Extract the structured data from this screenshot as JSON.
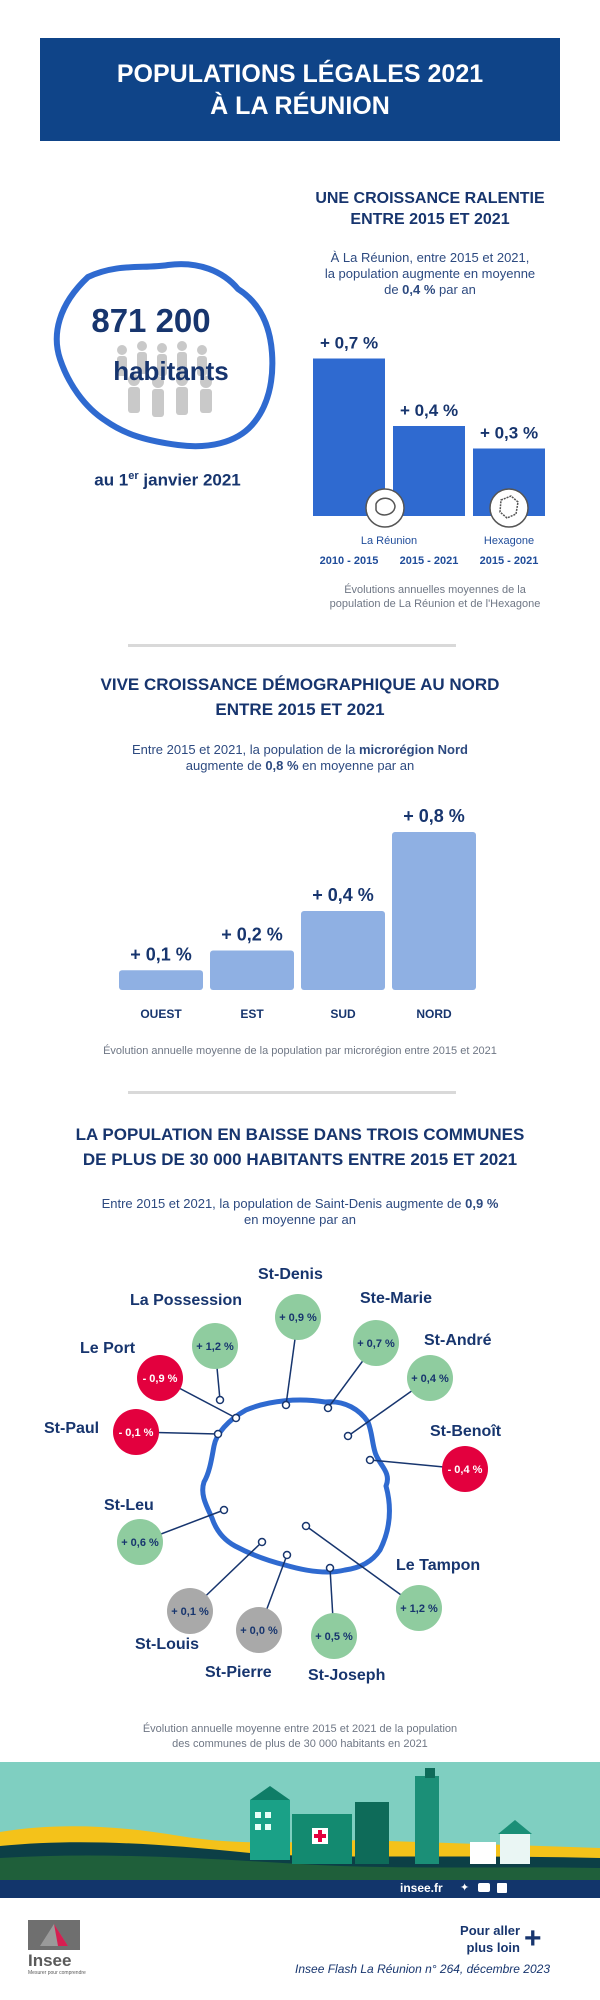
{
  "header": {
    "line1": "POPULATIONS LÉGALES 2021",
    "line2": "À LA RÉUNION"
  },
  "hero": {
    "population": "871 200",
    "unit": "habitants",
    "date_prefix": "au 1",
    "date_sup": "er",
    "date_suffix": "janvier 2021"
  },
  "growth": {
    "title1": "UNE CROISSANCE RALENTIE",
    "title2": "ENTRE 2015 ET 2021",
    "desc1": "À La Réunion, entre 2015 et 2021,",
    "desc2": "la population augmente en moyenne",
    "desc3_pre": "de ",
    "desc3_bold": "0,4 %",
    "desc3_post": " par an",
    "caption1": "Évolutions annuelles moyennes de la",
    "caption2": "population de La Réunion et de l'Hexagone",
    "chart_data": {
      "type": "bar",
      "categories": [
        "2010 - 2015",
        "2015 - 2021",
        "2015 - 2021"
      ],
      "groups": [
        "La Réunion",
        "La Réunion",
        "Hexagone"
      ],
      "values": [
        0.7,
        0.4,
        0.3
      ],
      "labels": [
        "+ 0,7 %",
        "+ 0,4 %",
        "+ 0,3 %"
      ],
      "ylim": [
        0,
        0.8
      ],
      "color": "#2f6ad0"
    },
    "group_labels": {
      "reunion": "La Réunion",
      "hexagone": "Hexagone"
    }
  },
  "micro": {
    "title1": "VIVE CROISSANCE DÉMOGRAPHIQUE AU NORD",
    "title2": "ENTRE 2015 ET 2021",
    "desc1_pre": "Entre 2015 et 2021, la population de la ",
    "desc1_bold": "microrégion Nord",
    "desc2_pre": "augmente de ",
    "desc2_bold": "0,8 %",
    "desc2_post": " en moyenne par an",
    "caption": "Évolution annuelle moyenne de la population par microrégion entre 2015 et 2021",
    "chart_data": {
      "type": "bar",
      "categories": [
        "OUEST",
        "EST",
        "SUD",
        "NORD"
      ],
      "values": [
        0.1,
        0.2,
        0.4,
        0.8
      ],
      "labels": [
        "+ 0,1 %",
        "+ 0,2 %",
        "+ 0,4 %",
        "+ 0,8 %"
      ],
      "ylim": [
        0,
        0.8
      ],
      "color": "#8fb0e3"
    }
  },
  "communes": {
    "title1": "LA POPULATION EN BAISSE DANS TROIS COMMUNES",
    "title2": "DE PLUS DE 30 000 HABITANTS ENTRE 2015 ET 2021",
    "desc1_pre": "Entre 2015 et 2021, la population de Saint-Denis augmente de ",
    "desc1_bold": "0,9 %",
    "desc2": "en moyenne par an",
    "caption1": "Évolution annuelle moyenne entre 2015 et 2021 de la population",
    "caption2": "des communes de plus de 30 000 habitants en 2021",
    "colors": {
      "up": "#8fcc9f",
      "down": "#e3003e",
      "flat": "#a9a9a9"
    },
    "items": [
      {
        "name": "St-Denis",
        "value": "+ 0,9 %",
        "trend": "up"
      },
      {
        "name": "Ste-Marie",
        "value": "+ 0,7 %",
        "trend": "up"
      },
      {
        "name": "St-André",
        "value": "+ 0,4 %",
        "trend": "up"
      },
      {
        "name": "St-Benoît",
        "value": "- 0,4 %",
        "trend": "down"
      },
      {
        "name": "Le Tampon",
        "value": "+ 1,2 %",
        "trend": "up"
      },
      {
        "name": "St-Joseph",
        "value": "+ 0,5 %",
        "trend": "up"
      },
      {
        "name": "St-Pierre",
        "value": "+ 0,0 %",
        "trend": "flat"
      },
      {
        "name": "St-Louis",
        "value": "+ 0,1 %",
        "trend": "flat"
      },
      {
        "name": "St-Leu",
        "value": "+ 0,6 %",
        "trend": "up"
      },
      {
        "name": "St-Paul",
        "value": "- 0,1 %",
        "trend": "down"
      },
      {
        "name": "Le Port",
        "value": "- 0,9 %",
        "trend": "down"
      },
      {
        "name": "La Possession",
        "value": "+ 1,2 %",
        "trend": "up"
      }
    ]
  },
  "footer": {
    "site": "insee.fr",
    "more1": "Pour aller",
    "more2": "plus loin",
    "logo_text": "Insee",
    "logo_tagline": "Mesurer pour comprendre",
    "publication": "Insee Flash La Réunion n° 264, décembre 2023"
  }
}
